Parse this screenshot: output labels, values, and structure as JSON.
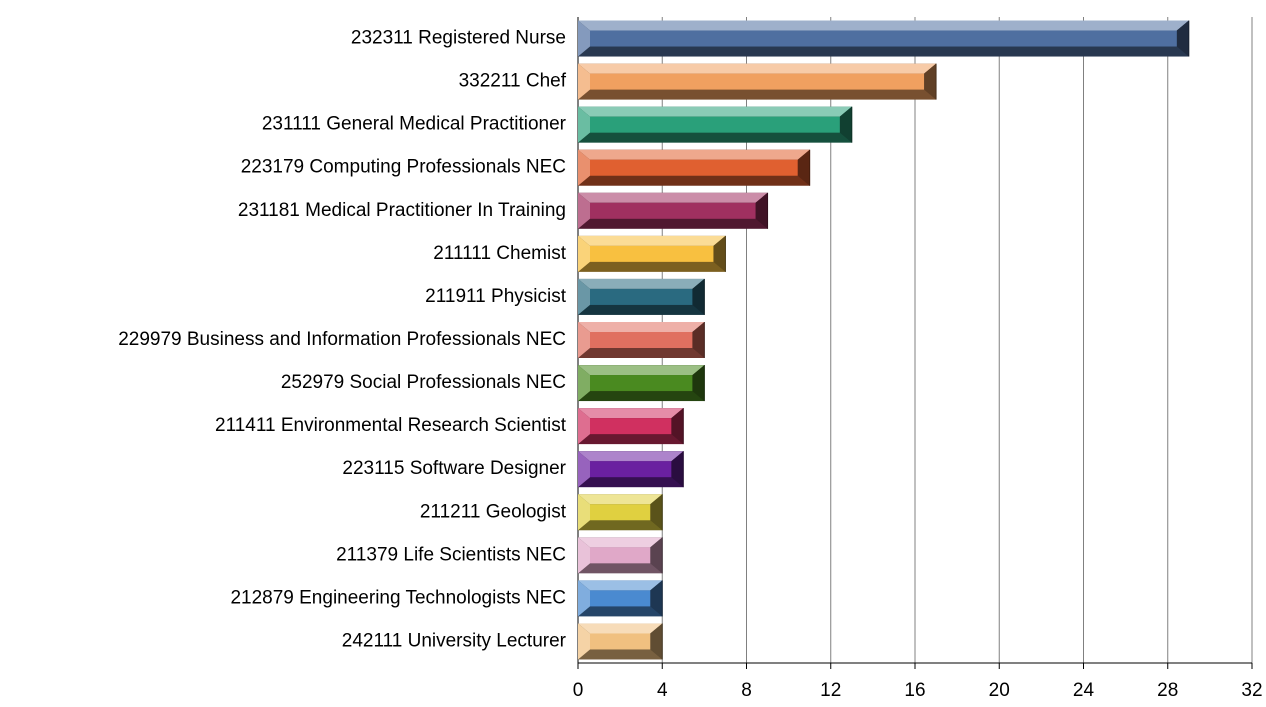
{
  "chart_data": {
    "type": "bar",
    "orientation": "horizontal",
    "categories": [
      "232311 Registered Nurse",
      "332211 Chef",
      "231111 General Medical Practitioner",
      "223179 Computing Professionals NEC",
      "231181 Medical Practitioner In Training",
      "211111 Chemist",
      "211911 Physicist",
      "229979 Business and Information Professionals NEC",
      "252979 Social Professionals NEC",
      "211411 Environmental Research Scientist",
      "223115 Software Designer",
      "211211 Geologist",
      "211379 Life Scientists NEC",
      "212879 Engineering Technologists NEC",
      "242111 University Lecturer"
    ],
    "values": [
      29,
      17,
      13,
      11,
      9,
      7,
      6,
      6,
      6,
      5,
      5,
      4,
      4,
      4,
      4
    ],
    "colors": [
      "#4f6fa0",
      "#f0a060",
      "#2aa07a",
      "#e06030",
      "#a03060",
      "#f8c040",
      "#2a6a80",
      "#e07060",
      "#4a8a20",
      "#d03060",
      "#6a20a0",
      "#e0d040",
      "#e0a8c8",
      "#4a8ad0",
      "#f0c080"
    ],
    "xlim": [
      0,
      32
    ],
    "xticks": [
      0,
      4,
      8,
      12,
      16,
      20,
      24,
      28,
      32
    ],
    "grid": true
  }
}
